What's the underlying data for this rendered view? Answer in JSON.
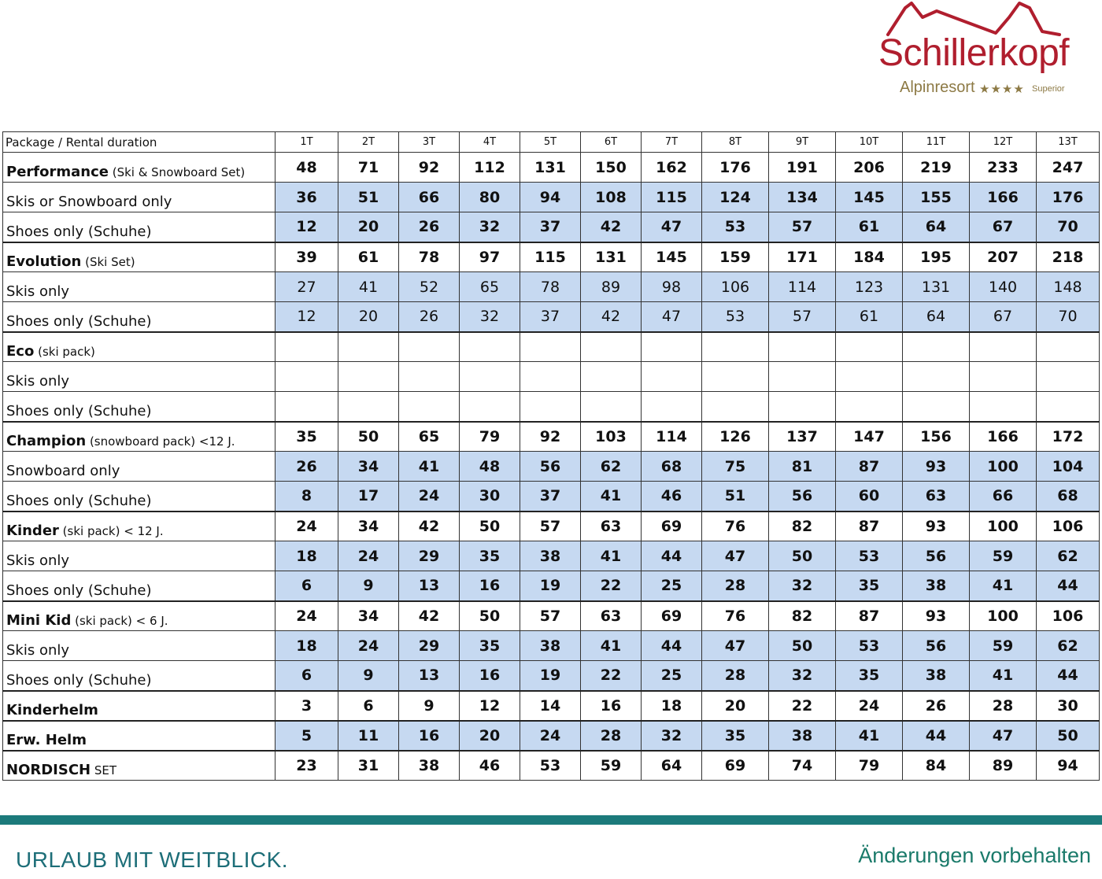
{
  "logo": {
    "name": "Schillerkopf",
    "subtitle": "Alpinresort",
    "stars": "★★★★",
    "rating": "Superior"
  },
  "table": {
    "header_label": "Package / Rental duration",
    "columns": [
      "1T",
      "2T",
      "3T",
      "4T",
      "5T",
      "6T",
      "7T",
      "8T",
      "9T",
      "10T",
      "11T",
      "12T",
      "13T"
    ],
    "rows": [
      {
        "main": "Performance",
        "sub": " (Ski & Snowboard Set)",
        "values": [
          "48",
          "71",
          "92",
          "112",
          "131",
          "150",
          "162",
          "176",
          "191",
          "206",
          "219",
          "233",
          "247"
        ]
      },
      {
        "main": "Skis or Snowboard only",
        "sub": "",
        "values": [
          "36",
          "51",
          "66",
          "80",
          "94",
          "108",
          "115",
          "124",
          "134",
          "145",
          "155",
          "166",
          "176"
        ]
      },
      {
        "main": "Shoes only (Schuhe)",
        "sub": "",
        "values": [
          "12",
          "20",
          "26",
          "32",
          "37",
          "42",
          "47",
          "53",
          "57",
          "61",
          "64",
          "67",
          "70"
        ]
      },
      {
        "main": "Evolution",
        "sub": "  (Ski Set)",
        "values": [
          "39",
          "61",
          "78",
          "97",
          "115",
          "131",
          "145",
          "159",
          "171",
          "184",
          "195",
          "207",
          "218"
        ]
      },
      {
        "main": "Skis only",
        "sub": "",
        "values": [
          "27",
          "41",
          "52",
          "65",
          "78",
          "89",
          "98",
          "106",
          "114",
          "123",
          "131",
          "140",
          "148"
        ]
      },
      {
        "main": "Shoes only (Schuhe)",
        "sub": "",
        "values": [
          "12",
          "20",
          "26",
          "32",
          "37",
          "42",
          "47",
          "53",
          "57",
          "61",
          "64",
          "67",
          "70"
        ]
      },
      {
        "main": "Eco",
        "sub": " (ski pack)",
        "values": [
          "",
          "",
          "",
          "",
          "",
          "",
          "",
          "",
          "",
          "",
          "",
          "",
          ""
        ]
      },
      {
        "main": "Skis only",
        "sub": "",
        "values": [
          "",
          "",
          "",
          "",
          "",
          "",
          "",
          "",
          "",
          "",
          "",
          "",
          ""
        ]
      },
      {
        "main": "Shoes only (Schuhe)",
        "sub": "",
        "values": [
          "",
          "",
          "",
          "",
          "",
          "",
          "",
          "",
          "",
          "",
          "",
          "",
          ""
        ]
      },
      {
        "main": "Champion",
        "sub": " (snowboard pack) <12 J.",
        "values": [
          "35",
          "50",
          "65",
          "79",
          "92",
          "103",
          "114",
          "126",
          "137",
          "147",
          "156",
          "166",
          "172"
        ]
      },
      {
        "main": "Snowboard only",
        "sub": "",
        "values": [
          "26",
          "34",
          "41",
          "48",
          "56",
          "62",
          "68",
          "75",
          "81",
          "87",
          "93",
          "100",
          "104"
        ]
      },
      {
        "main": "Shoes only (Schuhe)",
        "sub": "",
        "values": [
          "8",
          "17",
          "24",
          "30",
          "37",
          "41",
          "46",
          "51",
          "56",
          "60",
          "63",
          "66",
          "68"
        ]
      },
      {
        "main": "Kinder",
        "sub": " (ski pack) < 12 J.",
        "values": [
          "24",
          "34",
          "42",
          "50",
          "57",
          "63",
          "69",
          "76",
          "82",
          "87",
          "93",
          "100",
          "106"
        ]
      },
      {
        "main": "Skis only",
        "sub": "",
        "values": [
          "18",
          "24",
          "29",
          "35",
          "38",
          "41",
          "44",
          "47",
          "50",
          "53",
          "56",
          "59",
          "62"
        ]
      },
      {
        "main": "Shoes only (Schuhe)",
        "sub": "",
        "values": [
          "6",
          "9",
          "13",
          "16",
          "19",
          "22",
          "25",
          "28",
          "32",
          "35",
          "38",
          "41",
          "44"
        ]
      },
      {
        "main": "Mini Kid",
        "sub": " (ski pack) < 6 J.",
        "values": [
          "24",
          "34",
          "42",
          "50",
          "57",
          "63",
          "69",
          "76",
          "82",
          "87",
          "93",
          "100",
          "106"
        ]
      },
      {
        "main": "Skis only",
        "sub": "",
        "values": [
          "18",
          "24",
          "29",
          "35",
          "38",
          "41",
          "44",
          "47",
          "50",
          "53",
          "56",
          "59",
          "62"
        ]
      },
      {
        "main": "Shoes only (Schuhe)",
        "sub": "",
        "values": [
          "6",
          "9",
          "13",
          "16",
          "19",
          "22",
          "25",
          "28",
          "32",
          "35",
          "38",
          "41",
          "44"
        ]
      },
      {
        "main": "Kinderhelm",
        "sub": "",
        "values": [
          "3",
          "6",
          "9",
          "12",
          "14",
          "16",
          "18",
          "20",
          "22",
          "24",
          "26",
          "28",
          "30"
        ]
      },
      {
        "main": "Erw. Helm",
        "sub": "",
        "values": [
          "5",
          "11",
          "16",
          "20",
          "24",
          "28",
          "32",
          "35",
          "38",
          "41",
          "44",
          "47",
          "50"
        ]
      },
      {
        "main": "NORDISCH",
        "sub": "  SET",
        "values": [
          "23",
          "31",
          "38",
          "46",
          "53",
          "59",
          "64",
          "69",
          "74",
          "79",
          "84",
          "89",
          "94"
        ]
      }
    ]
  },
  "footer": {
    "slogan": "URLAUB MIT WEITBLICK.",
    "notice": "Änderungen vorbehalten"
  }
}
